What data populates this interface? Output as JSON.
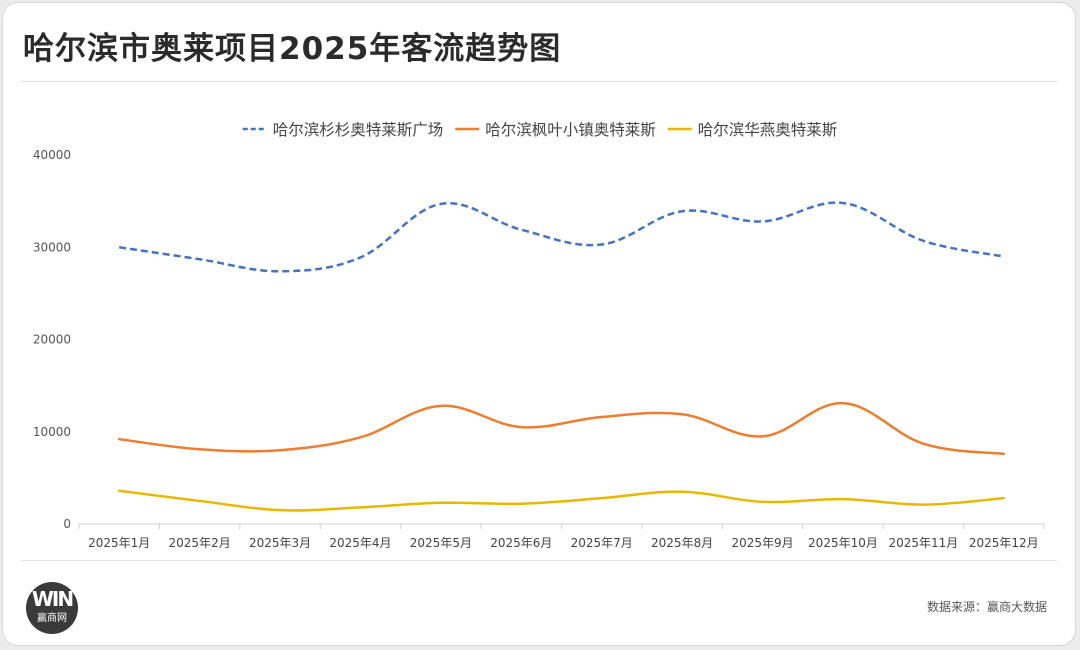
{
  "title": "哈尔滨市奥莱项目2025年客流趋势图",
  "source": "数据来源：赢商大数据",
  "logo": {
    "mark": "WIN",
    "name": "赢商网"
  },
  "chart_data": {
    "type": "line",
    "title": "哈尔滨市奥莱项目2025年客流趋势图",
    "xlabel": "",
    "ylabel": "",
    "categories": [
      "2025年1月",
      "2025年2月",
      "2025年3月",
      "2025年4月",
      "2025年5月",
      "2025年6月",
      "2025年7月",
      "2025年8月",
      "2025年9月",
      "2025年10月",
      "2025年11月",
      "2025年12月"
    ],
    "ylim": [
      0,
      40000
    ],
    "yticks": [
      0,
      10000,
      20000,
      30000,
      40000
    ],
    "grid": false,
    "legend_position": "top",
    "smooth": true,
    "series": [
      {
        "name": "哈尔滨杉杉奥特莱斯广场",
        "color": "#4472C4",
        "dashed": true,
        "values": [
          30000,
          28700,
          27400,
          28900,
          34700,
          31900,
          30300,
          33900,
          32800,
          34800,
          30700,
          29000
        ]
      },
      {
        "name": "哈尔滨枫叶小镇奥特莱斯",
        "color": "#ED7D31",
        "dashed": false,
        "values": [
          9200,
          8100,
          8000,
          9400,
          12800,
          10500,
          11600,
          11900,
          9500,
          13100,
          8700,
          7600
        ]
      },
      {
        "name": "哈尔滨华燕奥特莱斯",
        "color": "#E8B800",
        "dashed": false,
        "values": [
          3600,
          2500,
          1500,
          1800,
          2300,
          2200,
          2800,
          3500,
          2400,
          2700,
          2100,
          2800
        ]
      }
    ]
  }
}
